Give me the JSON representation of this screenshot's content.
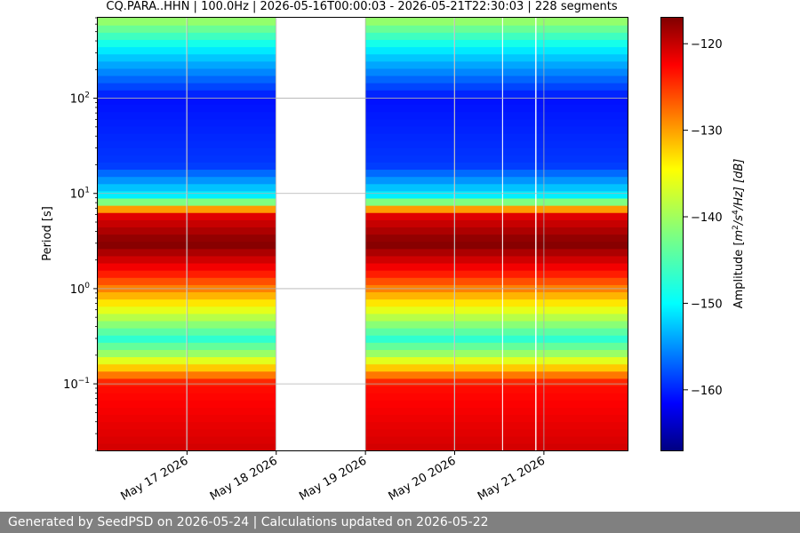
{
  "chart_data": {
    "type": "heatmap",
    "title": "CQ.PARA..HHN | 100.0Hz | 2026-05-16T00:00:03 - 2026-05-21T22:30:03 | 228 segments",
    "ylabel": "Period [s]",
    "yscale": "log",
    "ylim": [
      0.02,
      700
    ],
    "y_inverted": true,
    "yticks": [
      {
        "base": "10",
        "exp": "−1",
        "value": 0.1
      },
      {
        "base": "10",
        "exp": "0",
        "value": 1
      },
      {
        "base": "10",
        "exp": "1",
        "value": 10
      },
      {
        "base": "10",
        "exp": "2",
        "value": 100
      }
    ],
    "xlim": [
      "2026-05-16T00:00:03",
      "2026-05-21T22:30:03"
    ],
    "xticks": [
      {
        "label": "May 17 2026",
        "value": "2026-05-17"
      },
      {
        "label": "May 18 2026",
        "value": "2026-05-18"
      },
      {
        "label": "May 19 2026",
        "value": "2026-05-19"
      },
      {
        "label": "May 20 2026",
        "value": "2026-05-20"
      },
      {
        "label": "May 21 2026",
        "value": "2026-05-21"
      }
    ],
    "grid": true,
    "colorbar": {
      "label_prefix": "Amplitude [",
      "label_m": "m",
      "label_2": "2",
      "label_mid": "/s",
      "label_4": "4",
      "label_suffix": "/Hz] [dB]",
      "min": -167,
      "max": -117,
      "colormap": "jet",
      "ticks": [
        {
          "label": "−120",
          "value": -120
        },
        {
          "label": "−130",
          "value": -130
        },
        {
          "label": "−140",
          "value": -140
        },
        {
          "label": "−150",
          "value": -150
        },
        {
          "label": "−160",
          "value": -160
        }
      ]
    },
    "data_gaps": [
      {
        "start": "2026-05-16T23:50",
        "end": "2026-05-17T00:00"
      },
      {
        "start": "2026-05-17T23:50",
        "end": "2026-05-18T00:00"
      },
      {
        "start": "2026-05-18T00:00",
        "end": "2026-05-19T00:00"
      },
      {
        "start": "2026-05-19T23:50",
        "end": "2026-05-20T00:00"
      },
      {
        "start": "2026-05-20T12:45",
        "end": "2026-05-20T13:00"
      },
      {
        "start": "2026-05-20T21:40",
        "end": "2026-05-20T22:00"
      }
    ],
    "amplitude_profile_by_period": [
      {
        "period": 0.02,
        "db": -121
      },
      {
        "period": 0.1,
        "db": -124
      },
      {
        "period": 0.2,
        "db": -140
      },
      {
        "period": 0.3,
        "db": -146
      },
      {
        "period": 0.6,
        "db": -137
      },
      {
        "period": 1.5,
        "db": -124
      },
      {
        "period": 3,
        "db": -117
      },
      {
        "period": 6,
        "db": -122
      },
      {
        "period": 9,
        "db": -148
      },
      {
        "period": 20,
        "db": -158
      },
      {
        "period": 100,
        "db": -160
      },
      {
        "period": 300,
        "db": -150
      },
      {
        "period": 700,
        "db": -140
      }
    ]
  },
  "footer": {
    "text": "Generated by SeedPSD on 2026-05-24 | Calculations updated on 2026-05-22"
  }
}
